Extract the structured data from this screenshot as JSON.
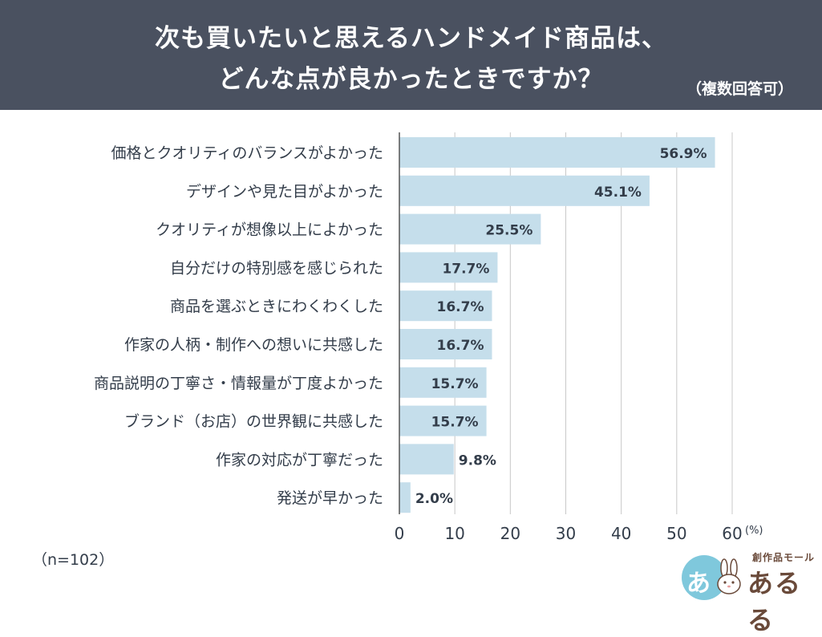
{
  "header": {
    "title_line1": "次も買いたいと思えるハンドメイド商品は、",
    "title_line2": "どんな点が良かったときですか？",
    "note": "（複数回答可）"
  },
  "footer": {
    "sample_size": "（n=102）",
    "logo_sub": "創作品モール",
    "logo_main": "あるる",
    "logo_badge": "あ"
  },
  "colors": {
    "bar": "#c5deeb",
    "header_bg": "#4a5160",
    "grid": "#c8c8c8",
    "text": "#333d4a"
  },
  "chart_data": {
    "type": "bar",
    "orientation": "horizontal",
    "categories": [
      "価格とクオリティのバランスがよかった",
      "デザインや見た目がよかった",
      "クオリティが想像以上によかった",
      "自分だけの特別感を感じられた",
      "商品を選ぶときにわくわくした",
      "作家の人柄・制作への想いに共感した",
      "商品説明の丁寧さ・情報量が丁度よかった",
      "ブランド（お店）の世界観に共感した",
      "作家の対応が丁寧だった",
      "発送が早かった"
    ],
    "values": [
      56.9,
      45.1,
      25.5,
      17.7,
      16.7,
      16.7,
      15.7,
      15.7,
      9.8,
      2.0
    ],
    "value_labels": [
      "56.9%",
      "45.1%",
      "25.5%",
      "17.7%",
      "16.7%",
      "16.7%",
      "15.7%",
      "15.7%",
      "9.8%",
      "2.0%"
    ],
    "xlim": [
      0,
      60
    ],
    "ticks": [
      0,
      10,
      20,
      30,
      40,
      50,
      60
    ],
    "tick_labels": [
      "0",
      "10",
      "20",
      "30",
      "40",
      "50",
      "60"
    ],
    "unit_label": "(%)",
    "grid": true
  }
}
